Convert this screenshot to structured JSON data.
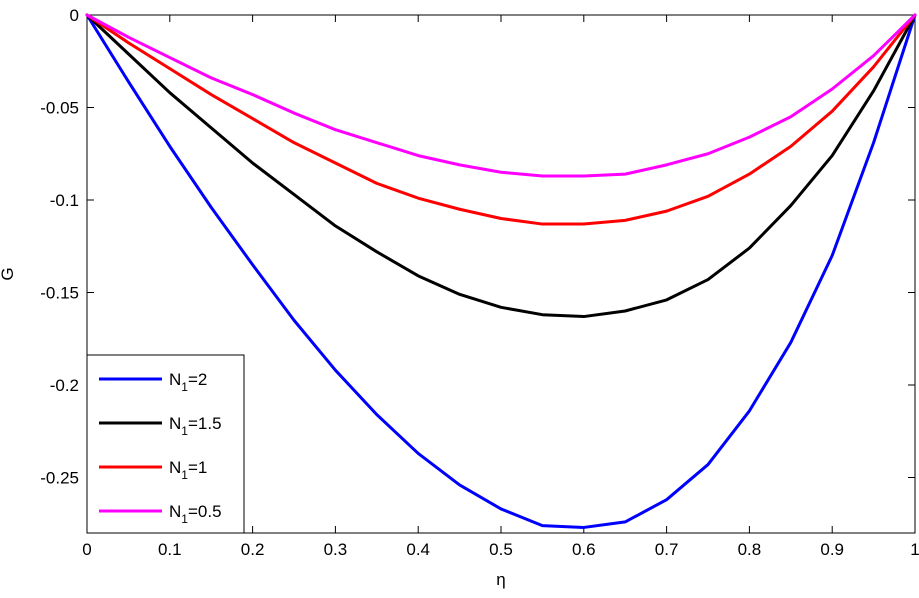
{
  "chart_data": {
    "type": "line",
    "title": "",
    "xlabel": "η",
    "ylabel": "G",
    "xlim": [
      0,
      1
    ],
    "ylim": [
      -0.28,
      0
    ],
    "grid": false,
    "legend_position": "bottom-left",
    "x": [
      0,
      0.05,
      0.1,
      0.15,
      0.2,
      0.25,
      0.3,
      0.35,
      0.4,
      0.45,
      0.5,
      0.55,
      0.6,
      0.65,
      0.7,
      0.75,
      0.8,
      0.85,
      0.9,
      0.95,
      1
    ],
    "x_ticks": [
      "0",
      "0.1",
      "0.2",
      "0.3",
      "0.4",
      "0.5",
      "0.6",
      "0.7",
      "0.8",
      "0.9",
      "1"
    ],
    "y_ticks": [
      "0",
      "-0.05",
      "-0.1",
      "-0.15",
      "-0.2",
      "-0.25"
    ],
    "series": [
      {
        "name": "N1=2",
        "label_base": "N",
        "label_sub": "1",
        "label_rest": "=2",
        "color": "#0000ff",
        "values": [
          0,
          -0.036,
          -0.071,
          -0.104,
          -0.135,
          -0.165,
          -0.192,
          -0.216,
          -0.237,
          -0.254,
          -0.267,
          -0.276,
          -0.277,
          -0.274,
          -0.262,
          -0.243,
          -0.214,
          -0.177,
          -0.13,
          -0.069,
          0
        ]
      },
      {
        "name": "N1=1.5",
        "label_base": "N",
        "label_sub": "1",
        "label_rest": "=1.5",
        "color": "#000000",
        "values": [
          0,
          -0.021,
          -0.042,
          -0.061,
          -0.08,
          -0.097,
          -0.114,
          -0.128,
          -0.141,
          -0.151,
          -0.158,
          -0.162,
          -0.163,
          -0.16,
          -0.154,
          -0.143,
          -0.126,
          -0.103,
          -0.076,
          -0.041,
          0
        ]
      },
      {
        "name": "N1=1",
        "label_base": "N",
        "label_sub": "1",
        "label_rest": "=1",
        "color": "#ff0000",
        "values": [
          0,
          -0.015,
          -0.029,
          -0.043,
          -0.056,
          -0.069,
          -0.08,
          -0.091,
          -0.099,
          -0.105,
          -0.11,
          -0.113,
          -0.113,
          -0.111,
          -0.106,
          -0.098,
          -0.086,
          -0.071,
          -0.052,
          -0.028,
          0
        ]
      },
      {
        "name": "N1=0.5",
        "label_base": "N",
        "label_sub": "1",
        "label_rest": "=0.5",
        "color": "#ff00ff",
        "values": [
          0,
          -0.012,
          -0.023,
          -0.034,
          -0.043,
          -0.053,
          -0.062,
          -0.069,
          -0.076,
          -0.081,
          -0.085,
          -0.087,
          -0.087,
          -0.086,
          -0.081,
          -0.075,
          -0.066,
          -0.055,
          -0.04,
          -0.022,
          0
        ]
      }
    ]
  }
}
